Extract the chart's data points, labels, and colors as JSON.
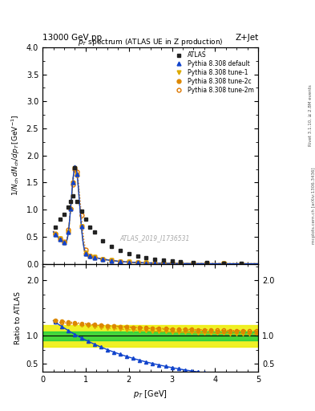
{
  "title_top_left": "13000 GeV pp",
  "title_top_right": "Z+Jet",
  "plot_title": "p$_T$ spectrum (ATLAS UE in Z production)",
  "ylabel_main": "1/N$_{ch}$ dN$_{ch}$/dp$_T$ [GeV]",
  "ylabel_ratio": "Ratio to ATLAS",
  "xlabel": "p$_T$ [GeV]",
  "right_label_top": "Rivet 3.1.10, ≥ 2.8M events",
  "right_label_bottom": "mcplots.cern.ch [arXiv:1306.3436]",
  "watermark": "ATLAS_2019_I1736531",
  "xlim": [
    0,
    5
  ],
  "ylim_main": [
    0,
    4
  ],
  "ylim_ratio": [
    0.35,
    2.3
  ],
  "legend_entries": [
    "ATLAS",
    "Pythia 8.308 default",
    "Pythia 8.308 tune-1",
    "Pythia 8.308 tune-2c",
    "Pythia 8.308 tune-2m"
  ],
  "color_atlas": "#222222",
  "color_default": "#1144cc",
  "color_tune1": "#ddaa00",
  "color_tune2c": "#dd8800",
  "color_tune2m": "#dd7700",
  "color_green_band": "#00cc44",
  "color_yellow_band": "#eeee00",
  "background_color": "#ffffff"
}
